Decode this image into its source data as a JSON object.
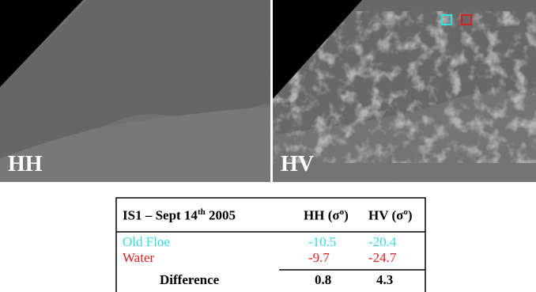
{
  "images": [
    {
      "label": "HH"
    },
    {
      "label": "HV"
    }
  ],
  "table": {
    "header": [
      {
        "text": "IS1 – Sept 14",
        "sup": "th",
        "after": " 2005"
      },
      {
        "text": "HH (σ",
        "sup": "o",
        "after": ")"
      },
      {
        "text": "HV (σ",
        "sup": "o",
        "after": ")"
      }
    ],
    "rows": [
      [
        "Old Floe",
        "-10.5",
        "-20.4"
      ],
      [
        "Water",
        "-9.7",
        "-24.7"
      ],
      [
        "Difference",
        "0.8",
        "4.3"
      ]
    ]
  }
}
